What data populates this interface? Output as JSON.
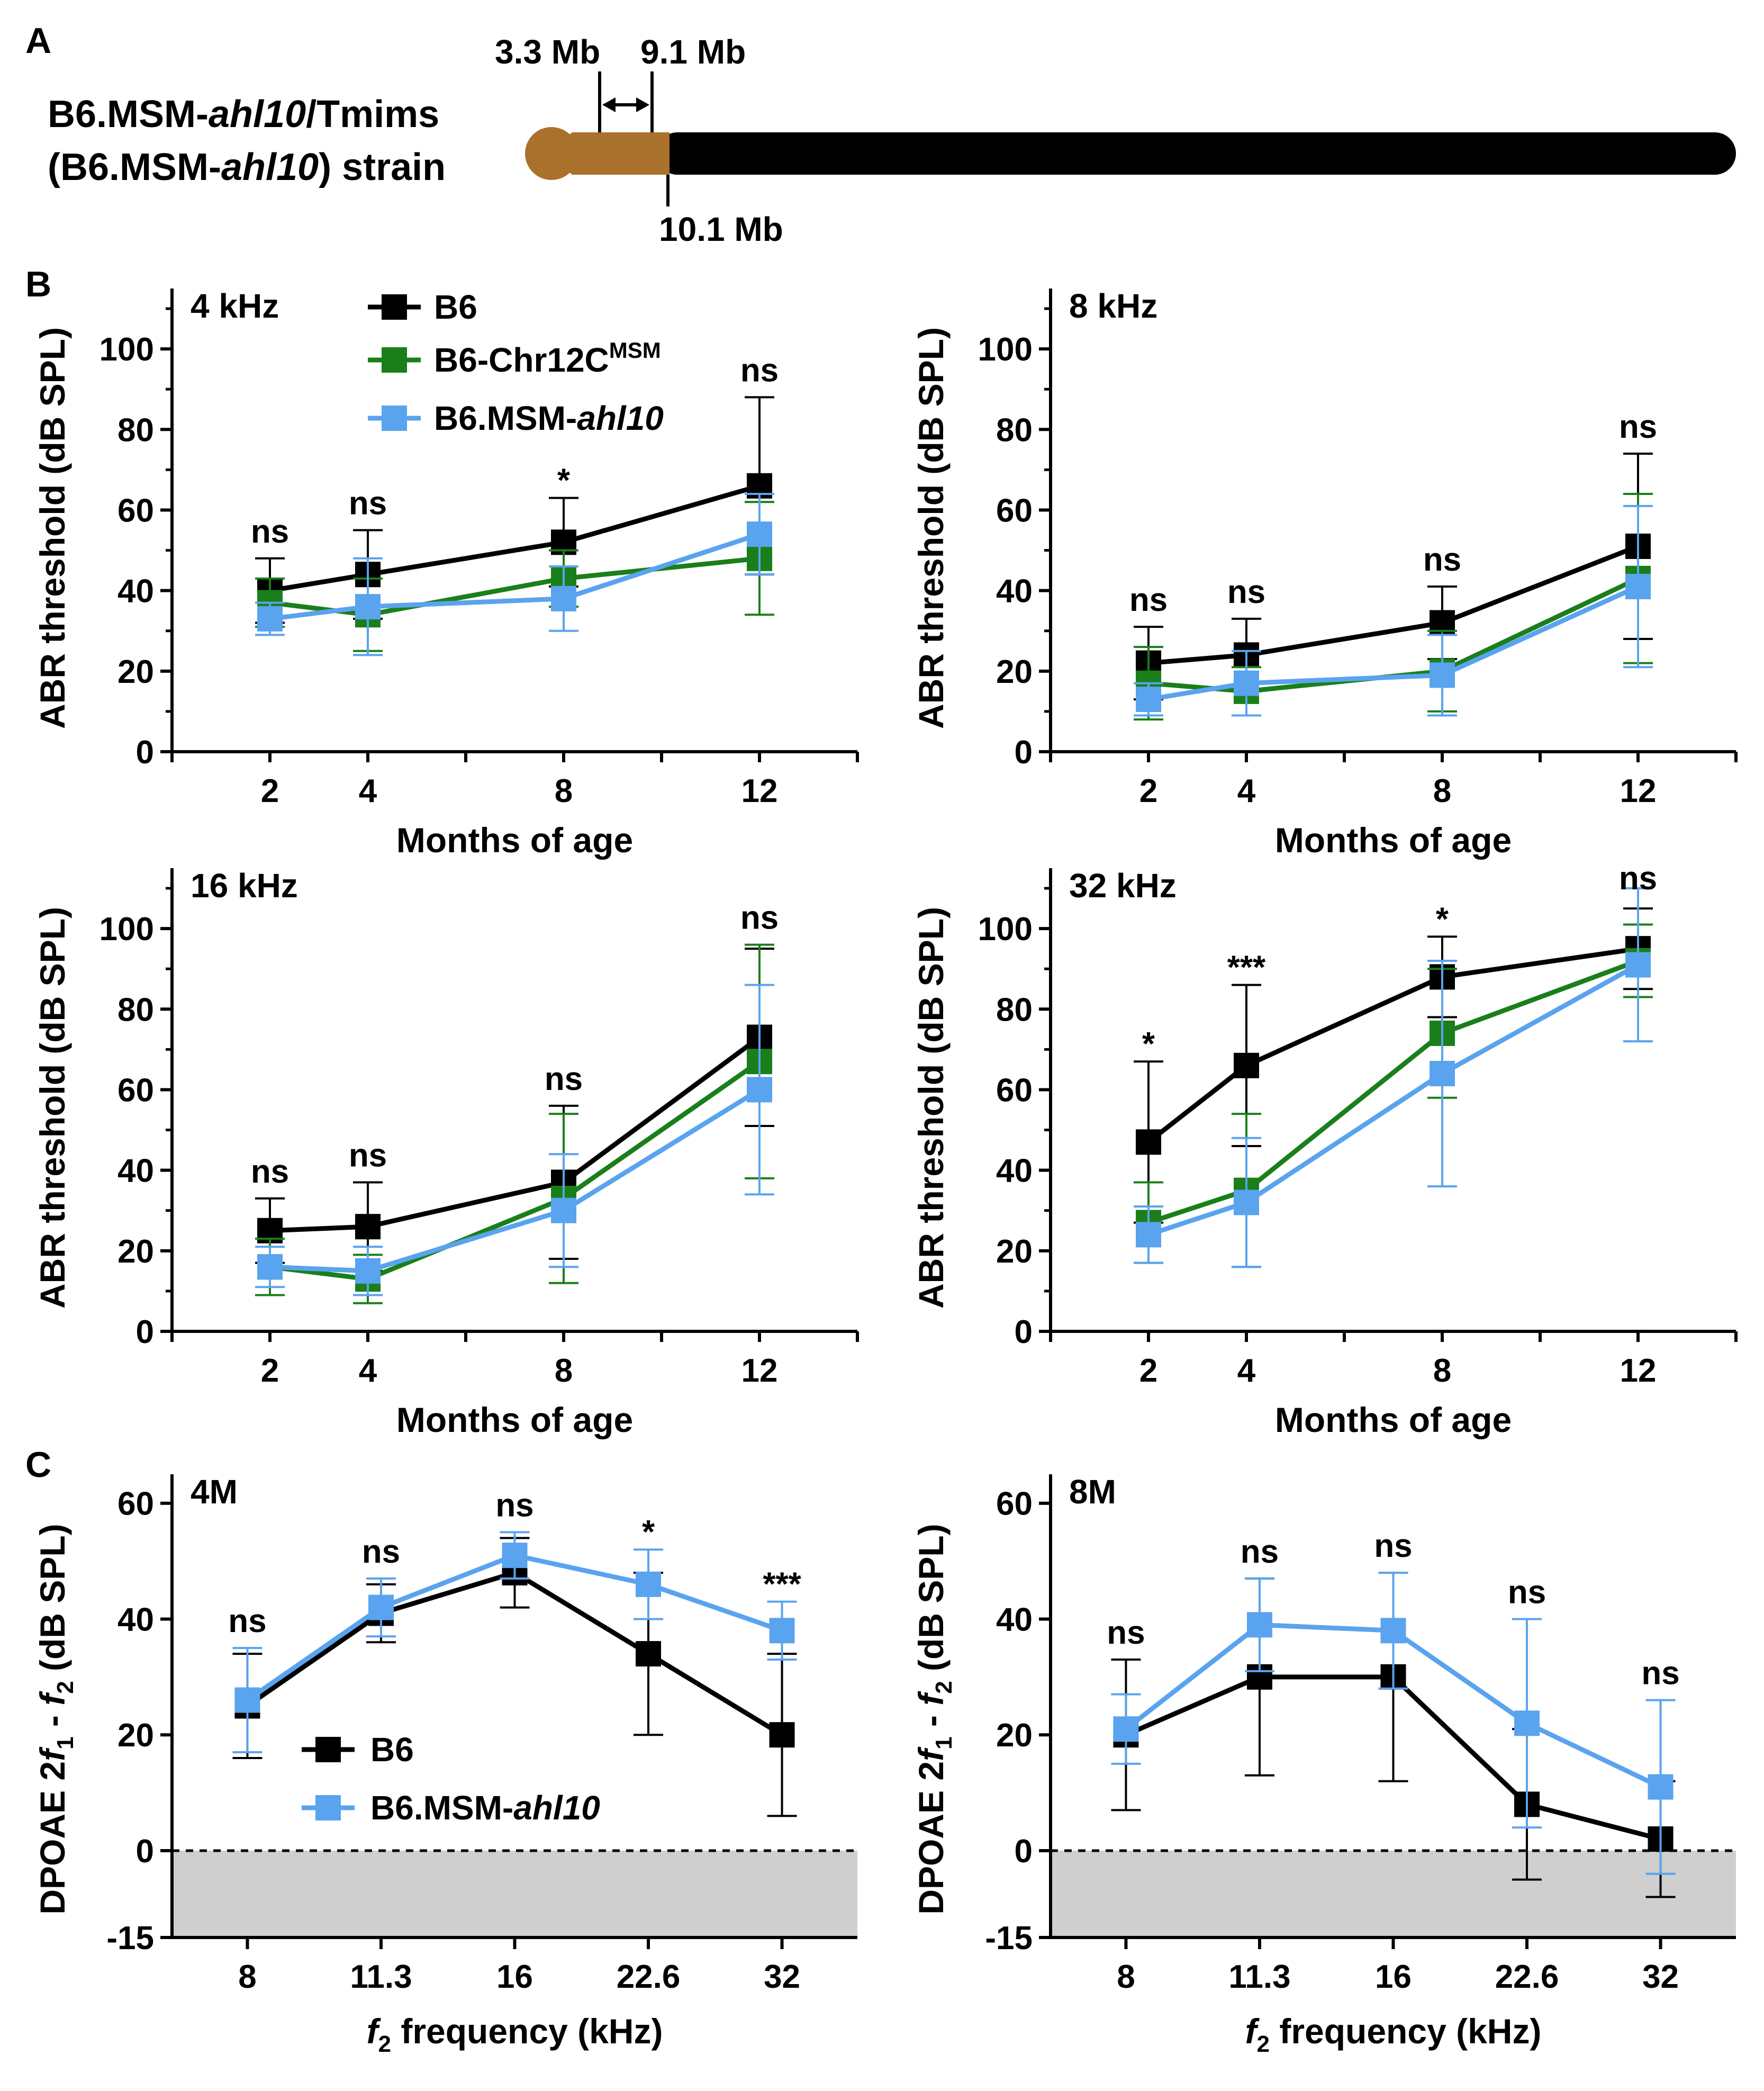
{
  "panel_letters": [
    "A",
    "B",
    "C"
  ],
  "panel_a": {
    "strain_line1_prefix": "B6.MSM-",
    "strain_line1_italic": "ahl10",
    "strain_line1_suffix": "/Tmims",
    "strain_line2_prefix": "(B6.MSM-",
    "strain_line2_italic": "ahl10",
    "strain_line2_suffix": ") strain",
    "marker_left": "3.3 Mb",
    "marker_right": "9.1 Mb",
    "marker_bottom": "10.1 Mb",
    "colors": {
      "msm_segment": "#A9712C",
      "b6_segment": "#000000"
    }
  },
  "legend_b": {
    "b6": "B6",
    "chr12_prefix": "B6-Chr12C",
    "chr12_sup": "MSM",
    "ahl10_prefix": "B6.MSM-",
    "ahl10_italic": "ahl10"
  },
  "legend_c": {
    "b6": "B6",
    "ahl10_prefix": "B6.MSM-",
    "ahl10_italic": "ahl10"
  },
  "chart_data": [
    {
      "type": "line",
      "title": "4 kHz",
      "xlabel": "Months of age",
      "ylabel": "ABR threshold (dB SPL)",
      "x": [
        2,
        4,
        8,
        12
      ],
      "xlim": [
        0,
        14
      ],
      "ylim": [
        0,
        115
      ],
      "yticks": [
        0,
        20,
        40,
        60,
        80,
        100
      ],
      "series": [
        {
          "name": "B6",
          "color": "#000000",
          "values": [
            40,
            44,
            52,
            66
          ],
          "errors": [
            8,
            11,
            11,
            22
          ]
        },
        {
          "name": "B6-Chr12C MSM",
          "color": "#1A7F1A",
          "values": [
            37,
            34,
            43,
            48
          ],
          "errors": [
            6,
            9,
            7,
            14
          ]
        },
        {
          "name": "B6.MSM-ahl10",
          "color": "#5AA3EE",
          "values": [
            33,
            36,
            38,
            54
          ],
          "errors": [
            4,
            12,
            8,
            10
          ]
        }
      ],
      "significance": [
        "ns",
        "ns",
        "*",
        "ns"
      ]
    },
    {
      "type": "line",
      "title": "8 kHz",
      "xlabel": "Months of age",
      "ylabel": "ABR threshold (dB SPL)",
      "x": [
        2,
        4,
        8,
        12
      ],
      "xlim": [
        0,
        14
      ],
      "ylim": [
        0,
        115
      ],
      "yticks": [
        0,
        20,
        40,
        60,
        80,
        100
      ],
      "series": [
        {
          "name": "B6",
          "color": "#000000",
          "values": [
            22,
            24,
            32,
            51
          ],
          "errors": [
            9,
            9,
            9,
            23
          ]
        },
        {
          "name": "B6-Chr12C MSM",
          "color": "#1A7F1A",
          "values": [
            17,
            15,
            20,
            43
          ],
          "errors": [
            9,
            6,
            10,
            21
          ]
        },
        {
          "name": "B6.MSM-ahl10",
          "color": "#5AA3EE",
          "values": [
            13,
            17,
            19,
            41
          ],
          "errors": [
            4,
            8,
            10,
            20
          ]
        }
      ],
      "significance": [
        "ns",
        "ns",
        "ns",
        "ns"
      ]
    },
    {
      "type": "line",
      "title": "16 kHz",
      "xlabel": "Months of age",
      "ylabel": "ABR threshold (dB SPL)",
      "x": [
        2,
        4,
        8,
        12
      ],
      "xlim": [
        0,
        14
      ],
      "ylim": [
        0,
        115
      ],
      "yticks": [
        0,
        20,
        40,
        60,
        80,
        100
      ],
      "series": [
        {
          "name": "B6",
          "color": "#000000",
          "values": [
            25,
            26,
            37,
            73
          ],
          "errors": [
            8,
            11,
            19,
            22
          ]
        },
        {
          "name": "B6-Chr12C MSM",
          "color": "#1A7F1A",
          "values": [
            16,
            13,
            33,
            67
          ],
          "errors": [
            7,
            6,
            21,
            29
          ]
        },
        {
          "name": "B6.MSM-ahl10",
          "color": "#5AA3EE",
          "values": [
            16,
            15,
            30,
            60
          ],
          "errors": [
            5,
            6,
            14,
            26
          ]
        }
      ],
      "significance": [
        "ns",
        "ns",
        "ns",
        "ns"
      ]
    },
    {
      "type": "line",
      "title": "32 kHz",
      "xlabel": "Months of age",
      "ylabel": "ABR threshold (dB SPL)",
      "x": [
        2,
        4,
        8,
        12
      ],
      "xlim": [
        0,
        14
      ],
      "ylim": [
        0,
        115
      ],
      "yticks": [
        0,
        20,
        40,
        60,
        80,
        100
      ],
      "series": [
        {
          "name": "B6",
          "color": "#000000",
          "values": [
            47,
            66,
            88,
            95
          ],
          "errors": [
            20,
            20,
            10,
            10
          ]
        },
        {
          "name": "B6-Chr12C MSM",
          "color": "#1A7F1A",
          "values": [
            27,
            35,
            74,
            92
          ],
          "errors": [
            10,
            19,
            16,
            9
          ]
        },
        {
          "name": "B6.MSM-ahl10",
          "color": "#5AA3EE",
          "values": [
            24,
            32,
            64,
            91
          ],
          "errors": [
            7,
            16,
            28,
            19
          ]
        }
      ],
      "significance": [
        "*",
        "***",
        "*",
        "ns"
      ]
    },
    {
      "type": "line",
      "title": "4M",
      "xlabel": "f2 frequency (kHz)",
      "ylabel": "DPOAE 2f1 - f2 (dB SPL)",
      "categories": [
        "8",
        "11.3",
        "16",
        "22.6",
        "32"
      ],
      "ylim": [
        -15,
        65
      ],
      "yticks": [
        -15,
        0,
        20,
        40,
        60
      ],
      "series": [
        {
          "name": "B6",
          "color": "#000000",
          "values": [
            25,
            41,
            48,
            34,
            20
          ],
          "errors": [
            9,
            5,
            6,
            14,
            14
          ]
        },
        {
          "name": "B6.MSM-ahl10",
          "color": "#5AA3EE",
          "values": [
            26,
            42,
            51,
            46,
            38
          ],
          "errors": [
            9,
            5,
            4,
            6,
            5
          ]
        }
      ],
      "significance": [
        "ns",
        "ns",
        "ns",
        "*",
        "***"
      ]
    },
    {
      "type": "line",
      "title": "8M",
      "xlabel": "f2 frequency (kHz)",
      "ylabel": "DPOAE 2f1 - f2 (dB SPL)",
      "categories": [
        "8",
        "11.3",
        "16",
        "22.6",
        "32"
      ],
      "ylim": [
        -15,
        65
      ],
      "yticks": [
        -15,
        0,
        20,
        40,
        60
      ],
      "series": [
        {
          "name": "B6",
          "color": "#000000",
          "values": [
            20,
            30,
            30,
            8,
            2
          ],
          "errors": [
            13,
            17,
            18,
            13,
            10
          ]
        },
        {
          "name": "B6.MSM-ahl10",
          "color": "#5AA3EE",
          "values": [
            21,
            39,
            38,
            22,
            11
          ],
          "errors": [
            6,
            8,
            10,
            18,
            15
          ]
        }
      ],
      "significance": [
        "ns",
        "ns",
        "ns",
        "ns",
        "ns"
      ]
    }
  ]
}
